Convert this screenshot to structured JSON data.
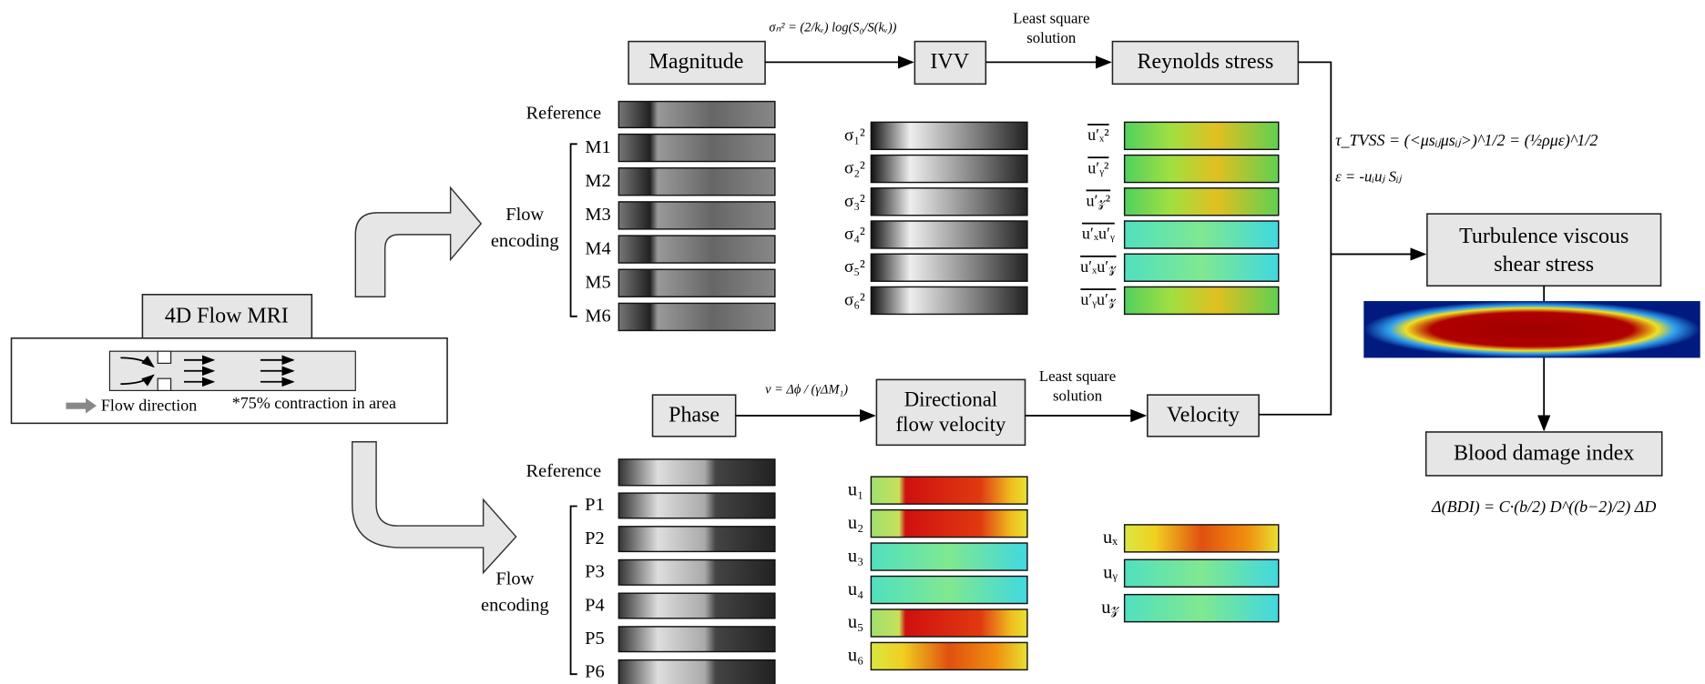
{
  "source": {
    "title": "4D Flow MRI",
    "legend": "Flow direction",
    "note": "*75% contraction in area"
  },
  "magnitude": {
    "box": "Magnitude",
    "encoding_label": [
      "Flow",
      "encoding"
    ],
    "reference": "Reference",
    "rows": [
      "M1",
      "M2",
      "M3",
      "M4",
      "M5",
      "M6"
    ]
  },
  "ivv": {
    "box": "IVV",
    "equation": "σₙ² = (2/kᵥ) log(S₀/S(kᵥ))",
    "rows": [
      "σ₁²",
      "σ₂²",
      "σ₃²",
      "σ₄²",
      "σ₅²",
      "σ₆²"
    ]
  },
  "reynolds": {
    "box": "Reynolds stress",
    "solution": [
      "Least square",
      "solution"
    ],
    "rows": [
      "u′ₓ²",
      "u′ᵧ²",
      "u′𝓏²",
      "u′ₓu′ᵧ",
      "u′ₓu′𝓏",
      "u′ᵧu′𝓏"
    ]
  },
  "phase": {
    "box": "Phase",
    "encoding_label": [
      "Flow",
      "encoding"
    ],
    "reference": "Reference",
    "rows": [
      "P1",
      "P2",
      "P3",
      "P4",
      "P5",
      "P6"
    ]
  },
  "directional": {
    "box": [
      "Directional",
      "flow velocity"
    ],
    "equation": "v = Δϕ / (γΔM₁)",
    "rows": [
      "u₁",
      "u₂",
      "u₃",
      "u₄",
      "u₅",
      "u₆"
    ]
  },
  "velocity": {
    "box": "Velocity",
    "solution": [
      "Least square",
      "solution"
    ],
    "rows": [
      "uₓ",
      "uᵧ",
      "u𝓏"
    ]
  },
  "tvss": {
    "box": [
      "Turbulence viscous",
      "shear stress"
    ],
    "equations": [
      "τ_TVSS = (<μsᵢⱼμsᵢⱼ>)^1/2 = (½ρμε)^1/2",
      "ε = -uᵢuⱼ Sᵢⱼ"
    ]
  },
  "bdi": {
    "box": "Blood damage index",
    "equation": "Δ(BDI) = C·(b/2) D^((b−2)/2) ΔD"
  }
}
